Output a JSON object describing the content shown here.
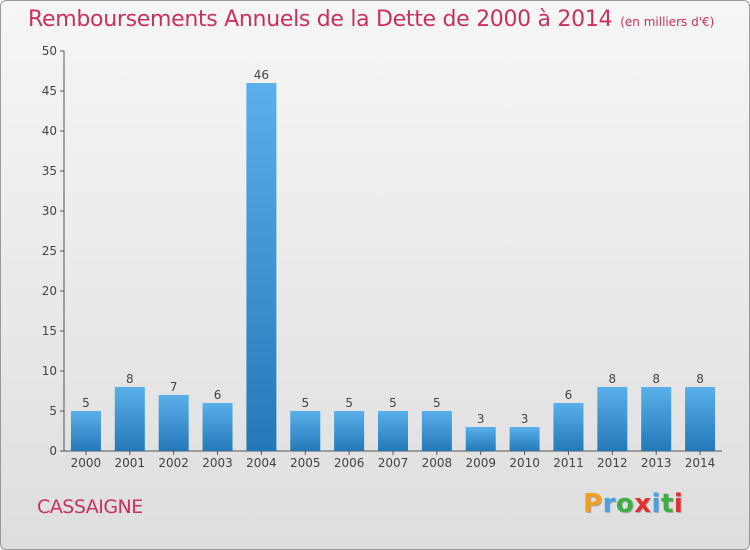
{
  "title": "Remboursements Annuels de la Dette de 2000 à 2014",
  "unit": "(en milliers d'€)",
  "commune": "CASSAIGNE",
  "logo": {
    "letters": [
      "P",
      "r",
      "o",
      "x",
      "i",
      "t",
      "i"
    ],
    "colors": [
      "#f0a020",
      "#4aa0e0",
      "#3cb043",
      "#e03030",
      "#4aa0e0",
      "#3cb043",
      "#e03030"
    ]
  },
  "colors": {
    "title": "#c8315f",
    "bar_top": "#5ab0ea",
    "bar_bottom": "#2478b8",
    "axis": "#555555"
  },
  "chart_data": {
    "type": "bar",
    "categories": [
      "2000",
      "2001",
      "2002",
      "2003",
      "2004",
      "2005",
      "2006",
      "2007",
      "2008",
      "2009",
      "2010",
      "2011",
      "2012",
      "2013",
      "2014"
    ],
    "values": [
      5,
      8,
      7,
      6,
      46,
      5,
      5,
      5,
      5,
      3,
      3,
      6,
      8,
      8,
      8
    ],
    "yticks": [
      0,
      5,
      10,
      15,
      20,
      25,
      30,
      35,
      40,
      45,
      50
    ],
    "ylim": [
      0,
      50
    ],
    "xlabel": "",
    "ylabel": "",
    "grid": false,
    "data_labels": true
  }
}
